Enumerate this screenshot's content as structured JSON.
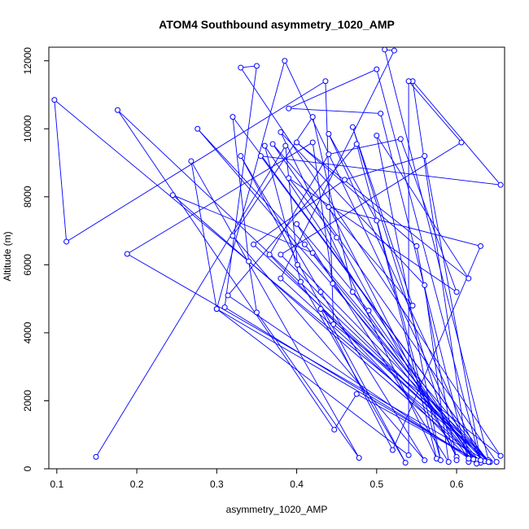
{
  "chart_data": {
    "type": "line",
    "title": "ATOM4 Southbound asymmetry_1020_AMP",
    "xlabel": "asymmetry_1020_AMP",
    "ylabel": "Altitude (m)",
    "xlim": [
      0.09,
      0.66
    ],
    "ylim": [
      0,
      12400
    ],
    "xticks": [
      0.1,
      0.2,
      0.3,
      0.4,
      0.5,
      0.6
    ],
    "xtick_labels": [
      "0.1",
      "0.2",
      "0.3",
      "0.4",
      "0.5",
      "0.6"
    ],
    "yticks": [
      0,
      2000,
      4000,
      6000,
      8000,
      10000,
      12000
    ],
    "ytick_labels": [
      "0",
      "2000",
      "4000",
      "6000",
      "8000",
      "10000",
      "12000"
    ],
    "grid": false,
    "markers": "open-circle",
    "colors": {
      "series": "#0000ff",
      "axes": "#000000"
    },
    "series": [
      {
        "points": [
          [
            0.149,
            350
          ],
          [
            0.386,
            9500
          ],
          [
            0.401,
            6000
          ],
          [
            0.642,
            200
          ],
          [
            0.097,
            10850
          ],
          [
            0.112,
            6680
          ],
          [
            0.436,
            11400
          ],
          [
            0.446,
            4250
          ],
          [
            0.655,
            380
          ],
          [
            0.33,
            11800
          ],
          [
            0.35,
            11850
          ],
          [
            0.31,
            4750
          ],
          [
            0.62,
            300
          ],
          [
            0.385,
            12000
          ],
          [
            0.3,
            4700
          ],
          [
            0.625,
            250
          ],
          [
            0.475,
            2200
          ],
          [
            0.447,
            1150
          ],
          [
            0.176,
            10550
          ],
          [
            0.64,
            250
          ],
          [
            0.51,
            12330
          ],
          [
            0.522,
            12300
          ],
          [
            0.38,
            5600
          ],
          [
            0.63,
            200
          ],
          [
            0.5,
            11750
          ],
          [
            0.39,
            10600
          ],
          [
            0.505,
            10450
          ],
          [
            0.615,
            200
          ],
          [
            0.545,
            11400
          ],
          [
            0.655,
            8350
          ],
          [
            0.355,
            9200
          ],
          [
            0.64,
            200
          ],
          [
            0.32,
            10350
          ],
          [
            0.34,
            6100
          ],
          [
            0.35,
            4600
          ],
          [
            0.478,
            320
          ],
          [
            0.268,
            9050
          ],
          [
            0.3,
            4700
          ],
          [
            0.54,
            400
          ],
          [
            0.54,
            11400
          ],
          [
            0.606,
            9600
          ],
          [
            0.38,
            6300
          ],
          [
            0.635,
            220
          ],
          [
            0.276,
            10000
          ],
          [
            0.41,
            6600
          ],
          [
            0.63,
            180
          ],
          [
            0.245,
            8050
          ],
          [
            0.42,
            6350
          ],
          [
            0.64,
            200
          ],
          [
            0.188,
            6320
          ],
          [
            0.42,
            9600
          ],
          [
            0.445,
            5450
          ],
          [
            0.621,
            280
          ],
          [
            0.36,
            9500
          ],
          [
            0.405,
            5500
          ],
          [
            0.536,
            180
          ],
          [
            0.33,
            9200
          ],
          [
            0.43,
            5200
          ],
          [
            0.56,
            250
          ],
          [
            0.32,
            6850
          ],
          [
            0.42,
            10350
          ],
          [
            0.47,
            5200
          ],
          [
            0.615,
            300
          ],
          [
            0.366,
            6300
          ],
          [
            0.44,
            9250
          ],
          [
            0.53,
            9700
          ],
          [
            0.6,
            5200
          ],
          [
            0.39,
            8550
          ],
          [
            0.45,
            6800
          ],
          [
            0.6,
            350
          ],
          [
            0.44,
            7700
          ],
          [
            0.63,
            6550
          ],
          [
            0.52,
            550
          ],
          [
            0.43,
            4700
          ],
          [
            0.64,
            200
          ],
          [
            0.346,
            6600
          ],
          [
            0.46,
            8500
          ],
          [
            0.56,
            9200
          ],
          [
            0.63,
            250
          ],
          [
            0.44,
            9850
          ],
          [
            0.5,
            7300
          ],
          [
            0.575,
            300
          ],
          [
            0.38,
            9900
          ],
          [
            0.56,
            5400
          ],
          [
            0.59,
            200
          ],
          [
            0.4,
            7200
          ],
          [
            0.49,
            4650
          ],
          [
            0.625,
            150
          ],
          [
            0.314,
            5100
          ],
          [
            0.475,
            9550
          ],
          [
            0.58,
            250
          ],
          [
            0.5,
            9800
          ],
          [
            0.615,
            5600
          ],
          [
            0.4,
            9600
          ],
          [
            0.55,
            6550
          ],
          [
            0.6,
            250
          ],
          [
            0.47,
            10050
          ],
          [
            0.545,
            4800
          ],
          [
            0.37,
            9550
          ],
          [
            0.65,
            200
          ]
        ]
      }
    ]
  }
}
